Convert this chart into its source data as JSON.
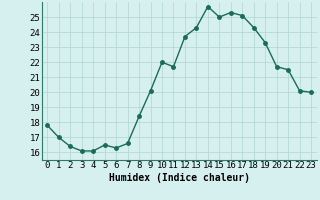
{
  "x": [
    0,
    1,
    2,
    3,
    4,
    5,
    6,
    7,
    8,
    9,
    10,
    11,
    12,
    13,
    14,
    15,
    16,
    17,
    18,
    19,
    20,
    21,
    22,
    23
  ],
  "y": [
    17.8,
    17.0,
    16.4,
    16.1,
    16.1,
    16.5,
    16.3,
    16.6,
    18.4,
    20.1,
    22.0,
    21.7,
    23.7,
    24.3,
    25.7,
    25.0,
    25.3,
    25.1,
    24.3,
    23.3,
    21.7,
    21.5,
    20.1,
    20.0
  ],
  "line_color": "#1a6b5a",
  "marker_color": "#1a6b5a",
  "bg_color": "#d6f0f0",
  "grid_color": "#b8d8d8",
  "xlabel": "Humidex (Indice chaleur)",
  "ylim_min": 15.5,
  "ylim_max": 26.0,
  "yticks": [
    16,
    17,
    18,
    19,
    20,
    21,
    22,
    23,
    24,
    25
  ],
  "xticks": [
    0,
    1,
    2,
    3,
    4,
    5,
    6,
    7,
    8,
    9,
    10,
    11,
    12,
    13,
    14,
    15,
    16,
    17,
    18,
    19,
    20,
    21,
    22,
    23
  ],
  "xlim_min": -0.5,
  "xlim_max": 23.5,
  "marker_size": 2.5,
  "line_width": 1.0,
  "xlabel_fontsize": 7,
  "tick_fontsize": 6.5
}
